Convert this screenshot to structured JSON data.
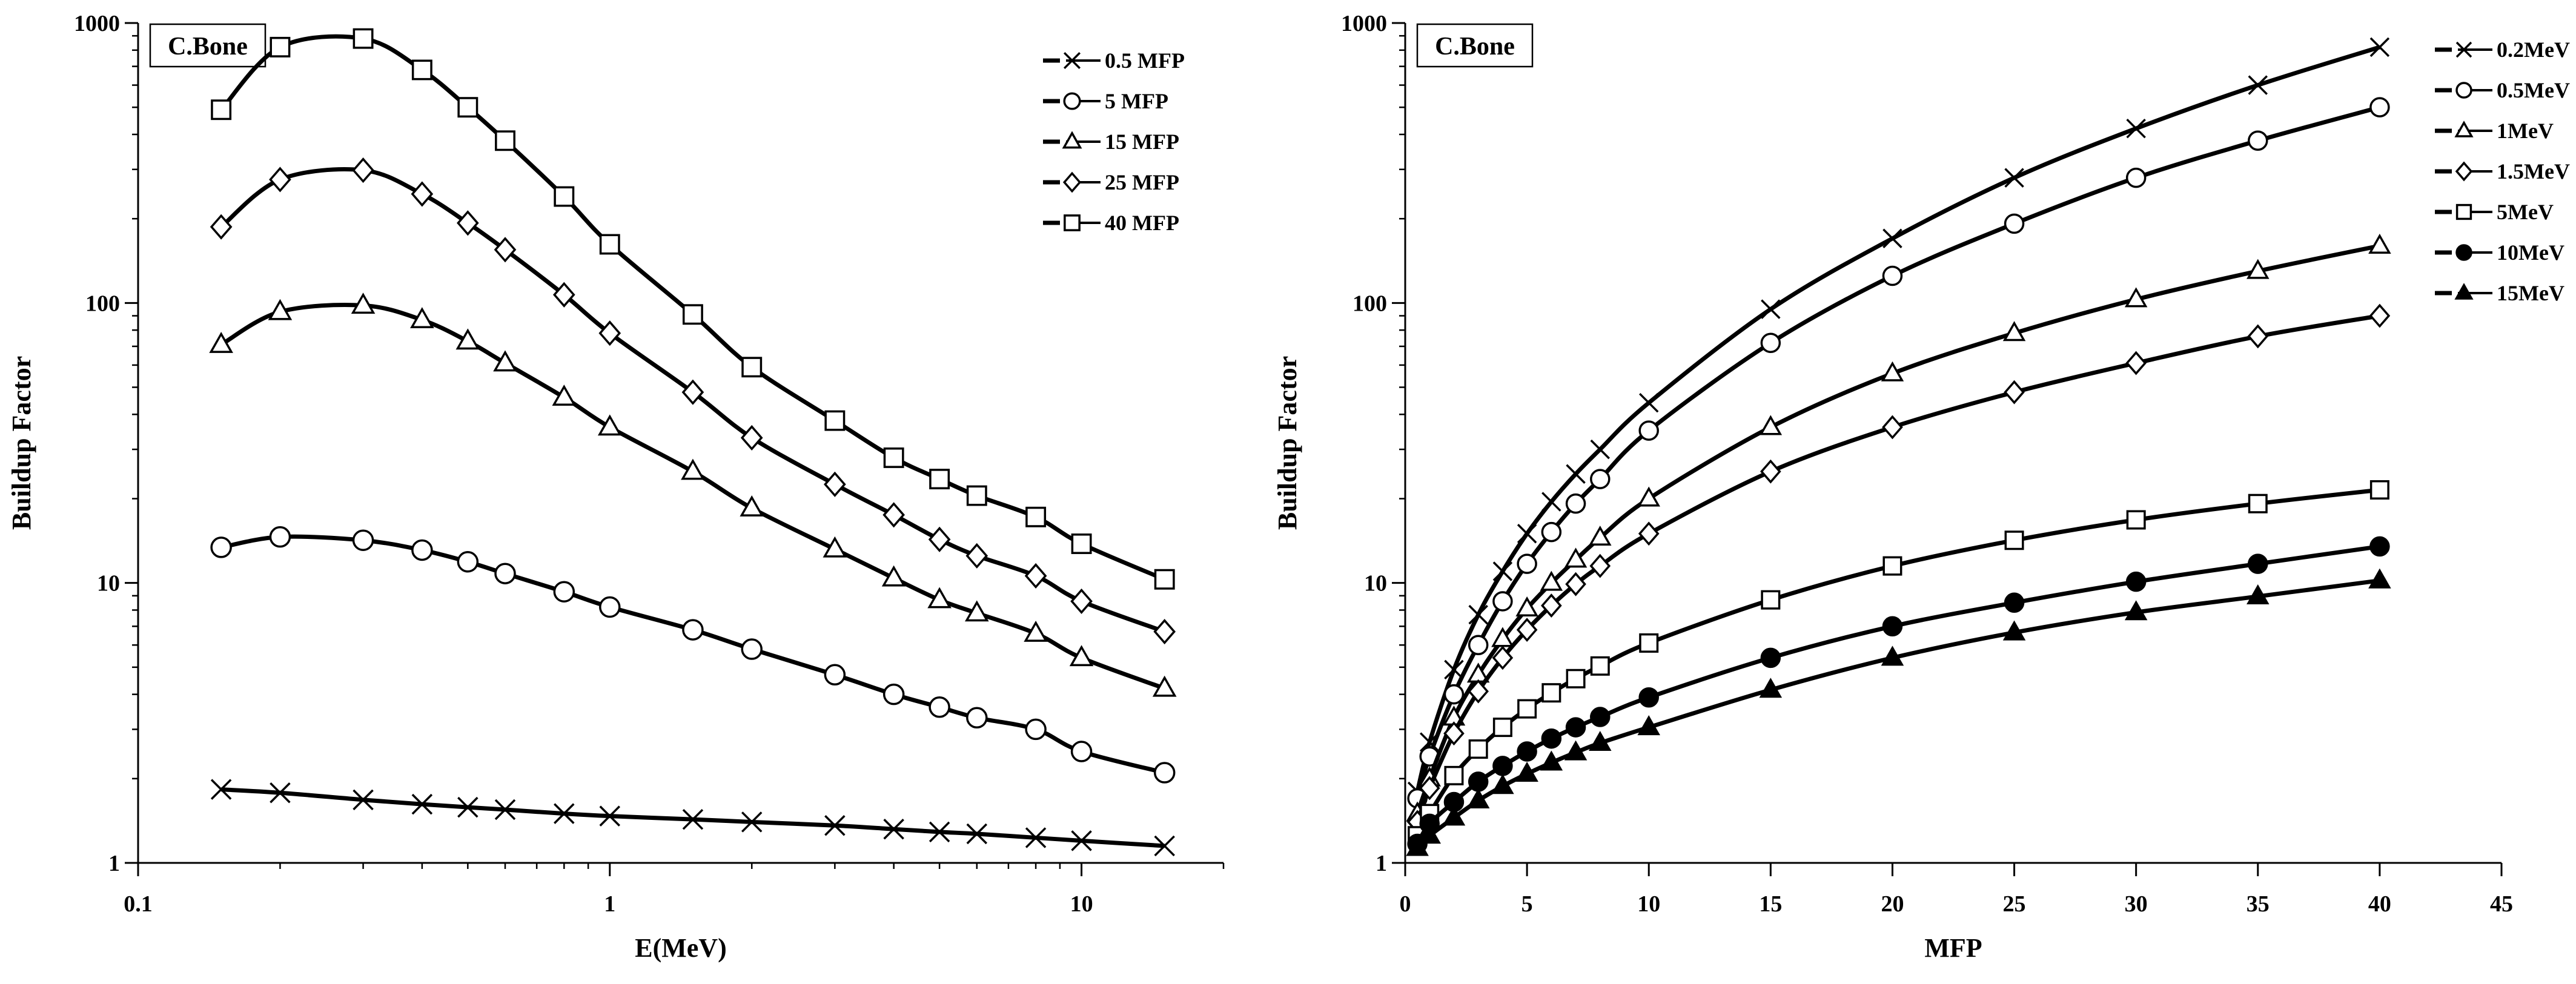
{
  "chart_data": [
    {
      "type": "line",
      "title": "C.Bone",
      "xlabel": "E(MeV)",
      "ylabel": "Buildup Factor",
      "xscale": "log",
      "yscale": "log",
      "xlim": [
        0.1,
        20
      ],
      "ylim": [
        1,
        1000
      ],
      "xticks": [
        0.1,
        1,
        10
      ],
      "xtick_labels": [
        "0.1",
        "1",
        "10"
      ],
      "yticks": [
        1,
        10,
        100,
        1000
      ],
      "ytick_labels": [
        "1",
        "10",
        "100",
        "1000"
      ],
      "legend_position": "top-right",
      "x": [
        0.15,
        0.2,
        0.3,
        0.4,
        0.5,
        0.6,
        0.8,
        1,
        1.5,
        2,
        3,
        4,
        5,
        6,
        8,
        10,
        15
      ],
      "series": [
        {
          "name": "0.5 MFP",
          "marker": "x",
          "values": [
            1.83,
            1.78,
            1.68,
            1.62,
            1.58,
            1.55,
            1.5,
            1.47,
            1.43,
            1.4,
            1.36,
            1.32,
            1.29,
            1.27,
            1.23,
            1.2,
            1.15
          ]
        },
        {
          "name": "5 MFP",
          "marker": "circle",
          "values": [
            13.4,
            14.6,
            14.2,
            13.1,
            11.9,
            10.8,
            9.3,
            8.2,
            6.8,
            5.8,
            4.7,
            4.0,
            3.6,
            3.3,
            3.0,
            2.5,
            2.1
          ]
        },
        {
          "name": "15 MFP",
          "marker": "triangle",
          "values": [
            71,
            93,
            98,
            87,
            73,
            61,
            46,
            36,
            25,
            18.5,
            13.2,
            10.4,
            8.7,
            7.8,
            6.6,
            5.4,
            4.2
          ]
        },
        {
          "name": "25 MFP",
          "marker": "diamond",
          "values": [
            187,
            276,
            298,
            245,
            193,
            155,
            107,
            78,
            48,
            33,
            22.5,
            17.5,
            14.3,
            12.5,
            10.6,
            8.6,
            6.7
          ]
        },
        {
          "name": "40 MFP",
          "marker": "square",
          "values": [
            490,
            820,
            880,
            680,
            500,
            380,
            240,
            162,
            91,
            59,
            38,
            28,
            23.5,
            20.5,
            17.2,
            13.8,
            10.3
          ]
        }
      ]
    },
    {
      "type": "line",
      "title": "C.Bone",
      "xlabel": "MFP",
      "ylabel": "Buildup Factor",
      "xscale": "linear",
      "yscale": "log",
      "xlim": [
        0,
        45
      ],
      "ylim": [
        1,
        1000
      ],
      "xticks": [
        0,
        5,
        10,
        15,
        20,
        25,
        30,
        35,
        40,
        45
      ],
      "xtick_labels": [
        "0",
        "5",
        "10",
        "15",
        "20",
        "25",
        "30",
        "35",
        "40",
        "45"
      ],
      "yticks": [
        1,
        10,
        100,
        1000
      ],
      "ytick_labels": [
        "1",
        "10",
        "100",
        "1000"
      ],
      "legend_position": "top-right",
      "x": [
        0.5,
        1,
        2,
        3,
        4,
        5,
        6,
        7,
        8,
        10,
        15,
        20,
        25,
        30,
        35,
        40
      ],
      "series": [
        {
          "name": "0.2MeV",
          "marker": "x",
          "values": [
            1.8,
            2.7,
            4.9,
            7.7,
            11,
            15,
            19.5,
            24.5,
            30,
            44,
            95,
            170,
            280,
            420,
            600,
            820
          ]
        },
        {
          "name": "0.5MeV",
          "marker": "circle",
          "values": [
            1.7,
            2.4,
            4.0,
            6.0,
            8.6,
            11.7,
            15.2,
            19.2,
            23.5,
            35,
            72,
            125,
            192,
            280,
            380,
            500
          ]
        },
        {
          "name": "1MeV",
          "marker": "triangle",
          "values": [
            1.5,
            2.0,
            3.3,
            4.7,
            6.3,
            8.1,
            10.0,
            12.1,
            14.5,
            20,
            36,
            56,
            78,
            103,
            130,
            160
          ]
        },
        {
          "name": "1.5MeV",
          "marker": "diamond",
          "values": [
            1.4,
            1.85,
            2.9,
            4.1,
            5.4,
            6.8,
            8.3,
            9.9,
            11.5,
            15,
            25,
            36,
            48,
            61,
            76,
            90
          ]
        },
        {
          "name": "5MeV",
          "marker": "square",
          "values": [
            1.25,
            1.5,
            2.05,
            2.55,
            3.05,
            3.55,
            4.05,
            4.55,
            5.05,
            6.1,
            8.7,
            11.5,
            14.2,
            16.8,
            19.2,
            21.5
          ]
        },
        {
          "name": "10MeV",
          "marker": "filled-circle",
          "values": [
            1.17,
            1.38,
            1.65,
            1.95,
            2.22,
            2.5,
            2.78,
            3.05,
            3.32,
            3.9,
            5.4,
            7.0,
            8.5,
            10.1,
            11.7,
            13.5
          ]
        },
        {
          "name": "15MeV",
          "marker": "filled-triangle",
          "values": [
            1.13,
            1.25,
            1.45,
            1.67,
            1.88,
            2.08,
            2.28,
            2.48,
            2.68,
            3.05,
            4.15,
            5.4,
            6.65,
            7.85,
            8.95,
            10.2
          ]
        }
      ]
    }
  ]
}
